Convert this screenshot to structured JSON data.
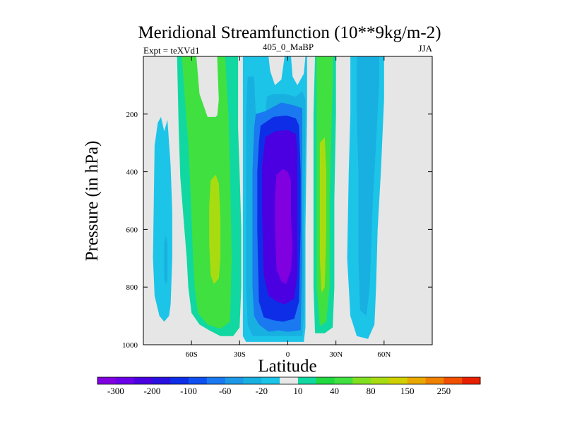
{
  "chart_data": {
    "type": "heatmap",
    "subtype": "filled-contour",
    "title": "Meridional Streamfunction (10**9kg/m-2)",
    "left_label": "Expt = teXVd1",
    "center_label": "405_0_MaBP",
    "right_label": "JJA",
    "xlabel": "Latitude",
    "ylabel": "Pressure (in hPa)",
    "xlim": [
      -90,
      90
    ],
    "ylim": [
      1000,
      0
    ],
    "x_ticks": [
      {
        "value": -60,
        "label": "60S"
      },
      {
        "value": -30,
        "label": "30S"
      },
      {
        "value": 0,
        "label": "0"
      },
      {
        "value": 30,
        "label": "30N"
      },
      {
        "value": 60,
        "label": "60N"
      }
    ],
    "y_ticks": [
      {
        "value": 200,
        "label": "200"
      },
      {
        "value": 400,
        "label": "400"
      },
      {
        "value": 600,
        "label": "600"
      },
      {
        "value": 800,
        "label": "800"
      },
      {
        "value": 1000,
        "label": "1000"
      }
    ],
    "missing_color": "#e6e6e6",
    "colorbar": {
      "colors": [
        "#8000e0",
        "#6a00e8",
        "#4a00e0",
        "#2a10e0",
        "#0d2ee6",
        "#1050f0",
        "#1a78f0",
        "#1d98e6",
        "#18b0e0",
        "#1cc4e8",
        "#e8e8e8",
        "#10d8a0",
        "#20d840",
        "#40e040",
        "#80e020",
        "#a8dc10",
        "#d0d000",
        "#e8a800",
        "#f08000",
        "#f05000",
        "#e82000"
      ],
      "labels": [
        "-300",
        "-200",
        "-100",
        "-60",
        "-20",
        "10",
        "40",
        "80",
        "150",
        "250"
      ]
    },
    "grid": false,
    "regions": [
      {
        "name": "cell-south-polar-outer",
        "value": -10,
        "points": [
          [
            -83,
            310
          ],
          [
            -81,
            230
          ],
          [
            -79,
            210
          ],
          [
            -77,
            260
          ],
          [
            -75,
            220
          ],
          [
            -73,
            380
          ],
          [
            -72,
            540
          ],
          [
            -72,
            700
          ],
          [
            -73,
            860
          ],
          [
            -74,
            900
          ],
          [
            -77,
            920
          ],
          [
            -80,
            900
          ],
          [
            -83,
            830
          ],
          [
            -84,
            700
          ]
        ]
      },
      {
        "name": "cell-south-polar-core",
        "value": -20,
        "points": [
          [
            -77,
            650
          ],
          [
            -76,
            620
          ],
          [
            -75,
            650
          ],
          [
            -75,
            780
          ],
          [
            -76,
            790
          ],
          [
            -77,
            770
          ]
        ]
      },
      {
        "name": "cell-ferrel-south-outer",
        "value": 10,
        "points": [
          [
            -69,
            0
          ],
          [
            -66,
            0
          ],
          [
            -64,
            60
          ],
          [
            -63,
            130
          ],
          [
            -58,
            220
          ],
          [
            -51,
            240
          ],
          [
            -43,
            200
          ],
          [
            -40,
            150
          ],
          [
            -42,
            40
          ],
          [
            -44,
            0
          ],
          [
            -31,
            0
          ],
          [
            -31,
            130
          ],
          [
            -31,
            250
          ],
          [
            -30,
            400
          ],
          [
            -29,
            600
          ],
          [
            -29,
            800
          ],
          [
            -30,
            940
          ],
          [
            -34,
            970
          ],
          [
            -42,
            970
          ],
          [
            -49,
            950
          ],
          [
            -55,
            930
          ],
          [
            -60,
            890
          ],
          [
            -62,
            800
          ],
          [
            -63,
            700
          ],
          [
            -65,
            560
          ],
          [
            -67,
            420
          ],
          [
            -68,
            250
          ]
        ]
      },
      {
        "name": "cell-ferrel-south-mid",
        "value": 40,
        "points": [
          [
            -66,
            0
          ],
          [
            -57,
            0
          ],
          [
            -55,
            130
          ],
          [
            -50,
            210
          ],
          [
            -44,
            210
          ],
          [
            -43,
            150
          ],
          [
            -44,
            0
          ],
          [
            -39,
            0
          ],
          [
            -37,
            200
          ],
          [
            -36,
            400
          ],
          [
            -35,
            700
          ],
          [
            -36,
            920
          ],
          [
            -42,
            945
          ],
          [
            -50,
            930
          ],
          [
            -56,
            890
          ],
          [
            -58,
            800
          ],
          [
            -59,
            700
          ],
          [
            -60,
            560
          ],
          [
            -61,
            420
          ],
          [
            -62,
            300
          ],
          [
            -64,
            160
          ]
        ]
      },
      {
        "name": "cell-ferrel-south-core",
        "value": 80,
        "points": [
          [
            -49,
            520
          ],
          [
            -48,
            430
          ],
          [
            -45,
            410
          ],
          [
            -43,
            440
          ],
          [
            -42,
            560
          ],
          [
            -42,
            700
          ],
          [
            -43,
            770
          ],
          [
            -46,
            790
          ],
          [
            -48,
            760
          ],
          [
            -49,
            650
          ]
        ]
      },
      {
        "name": "cell-hadley-winter-outer",
        "value": -10,
        "points": [
          [
            -28,
            0
          ],
          [
            -12,
            0
          ],
          [
            -11,
            50
          ],
          [
            -8,
            100
          ],
          [
            -4,
            80
          ],
          [
            -2,
            0
          ],
          [
            2,
            0
          ],
          [
            3,
            70
          ],
          [
            6,
            100
          ],
          [
            10,
            60
          ],
          [
            11,
            0
          ],
          [
            12,
            0
          ],
          [
            12,
            200
          ],
          [
            11,
            600
          ],
          [
            11,
            940
          ],
          [
            10,
            990
          ],
          [
            -26,
            990
          ],
          [
            -28,
            970
          ],
          [
            -28,
            800
          ],
          [
            -28,
            600
          ],
          [
            -28,
            400
          ]
        ]
      },
      {
        "name": "cell-hadley-winter-20",
        "value": -20,
        "points": [
          [
            -25,
            70
          ],
          [
            -21,
            70
          ],
          [
            -20,
            200
          ],
          [
            -14,
            200
          ],
          [
            -13,
            140
          ],
          [
            -9,
            130
          ],
          [
            -2,
            130
          ],
          [
            5,
            140
          ],
          [
            9,
            120
          ],
          [
            11,
            150
          ],
          [
            11,
            300
          ],
          [
            10,
            600
          ],
          [
            10,
            900
          ],
          [
            9,
            970
          ],
          [
            -22,
            970
          ],
          [
            -25,
            930
          ],
          [
            -26,
            800
          ],
          [
            -26,
            400
          ],
          [
            -26,
            200
          ]
        ]
      },
      {
        "name": "cell-hadley-winter-60",
        "value": -60,
        "points": [
          [
            -20,
            200
          ],
          [
            -14,
            190
          ],
          [
            -4,
            160
          ],
          [
            4,
            170
          ],
          [
            9,
            180
          ],
          [
            9,
            400
          ],
          [
            9,
            700
          ],
          [
            8,
            950
          ],
          [
            0,
            955
          ],
          [
            -6,
            950
          ],
          [
            -12,
            955
          ],
          [
            -18,
            930
          ],
          [
            -21,
            900
          ],
          [
            -22,
            800
          ],
          [
            -22,
            400
          ],
          [
            -21,
            250
          ]
        ]
      },
      {
        "name": "cell-hadley-winter-100",
        "value": -100,
        "points": [
          [
            -17,
            240
          ],
          [
            -9,
            210
          ],
          [
            -1,
            205
          ],
          [
            5,
            215
          ],
          [
            7,
            240
          ],
          [
            8,
            400
          ],
          [
            8,
            600
          ],
          [
            7,
            850
          ],
          [
            4,
            910
          ],
          [
            -3,
            920
          ],
          [
            -9,
            915
          ],
          [
            -15,
            905
          ],
          [
            -18,
            850
          ],
          [
            -19,
            600
          ],
          [
            -19,
            400
          ],
          [
            -18,
            300
          ]
        ]
      },
      {
        "name": "cell-hadley-winter-200",
        "value": -200,
        "points": [
          [
            -14,
            280
          ],
          [
            -8,
            260
          ],
          [
            0,
            255
          ],
          [
            5,
            270
          ],
          [
            6,
            330
          ],
          [
            6,
            500
          ],
          [
            6,
            750
          ],
          [
            4,
            840
          ],
          [
            -2,
            860
          ],
          [
            -7,
            850
          ],
          [
            -12,
            830
          ],
          [
            -15,
            760
          ],
          [
            -16,
            550
          ],
          [
            -16,
            380
          ]
        ]
      },
      {
        "name": "cell-hadley-winter-core",
        "value": -300,
        "points": [
          [
            -7,
            410
          ],
          [
            -3,
            390
          ],
          [
            0,
            400
          ],
          [
            2,
            430
          ],
          [
            2,
            560
          ],
          [
            3,
            660
          ],
          [
            2,
            740
          ],
          [
            -1,
            790
          ],
          [
            -4,
            780
          ],
          [
            -7,
            740
          ],
          [
            -8,
            600
          ],
          [
            -8,
            480
          ]
        ]
      },
      {
        "name": "cell-summer-hadley-outer",
        "value": 10,
        "points": [
          [
            17,
            0
          ],
          [
            30,
            0
          ],
          [
            30,
            200
          ],
          [
            29,
            500
          ],
          [
            29,
            800
          ],
          [
            28,
            940
          ],
          [
            23,
            960
          ],
          [
            17,
            960
          ],
          [
            16,
            800
          ],
          [
            16,
            500
          ],
          [
            16,
            200
          ]
        ]
      },
      {
        "name": "cell-summer-hadley-40",
        "value": 40,
        "points": [
          [
            18,
            0
          ],
          [
            28,
            0
          ],
          [
            28,
            80
          ],
          [
            27,
            300
          ],
          [
            26,
            500
          ],
          [
            26,
            800
          ],
          [
            24,
            920
          ],
          [
            20,
            935
          ],
          [
            18,
            800
          ],
          [
            18,
            500
          ],
          [
            18,
            200
          ]
        ]
      },
      {
        "name": "cell-summer-hadley-80",
        "value": 80,
        "points": [
          [
            20,
            300
          ],
          [
            23,
            280
          ],
          [
            24,
            400
          ],
          [
            24,
            600
          ],
          [
            23,
            800
          ],
          [
            21,
            820
          ],
          [
            20,
            700
          ],
          [
            20,
            500
          ]
        ]
      },
      {
        "name": "cell-north-mid",
        "value": -10,
        "points": [
          [
            39,
            0
          ],
          [
            60,
            0
          ],
          [
            60,
            150
          ],
          [
            58,
            400
          ],
          [
            56,
            600
          ],
          [
            55,
            800
          ],
          [
            54,
            930
          ],
          [
            50,
            980
          ],
          [
            43,
            970
          ],
          [
            39,
            900
          ],
          [
            37,
            700
          ],
          [
            38,
            400
          ],
          [
            39,
            200
          ]
        ]
      },
      {
        "name": "cell-north-mid-20",
        "value": -20,
        "points": [
          [
            43,
            0
          ],
          [
            57,
            0
          ],
          [
            57,
            80
          ],
          [
            55,
            300
          ],
          [
            53,
            500
          ],
          [
            51,
            800
          ],
          [
            49,
            900
          ],
          [
            45,
            880
          ],
          [
            44,
            700
          ],
          [
            44,
            400
          ],
          [
            43,
            200
          ]
        ]
      }
    ]
  }
}
